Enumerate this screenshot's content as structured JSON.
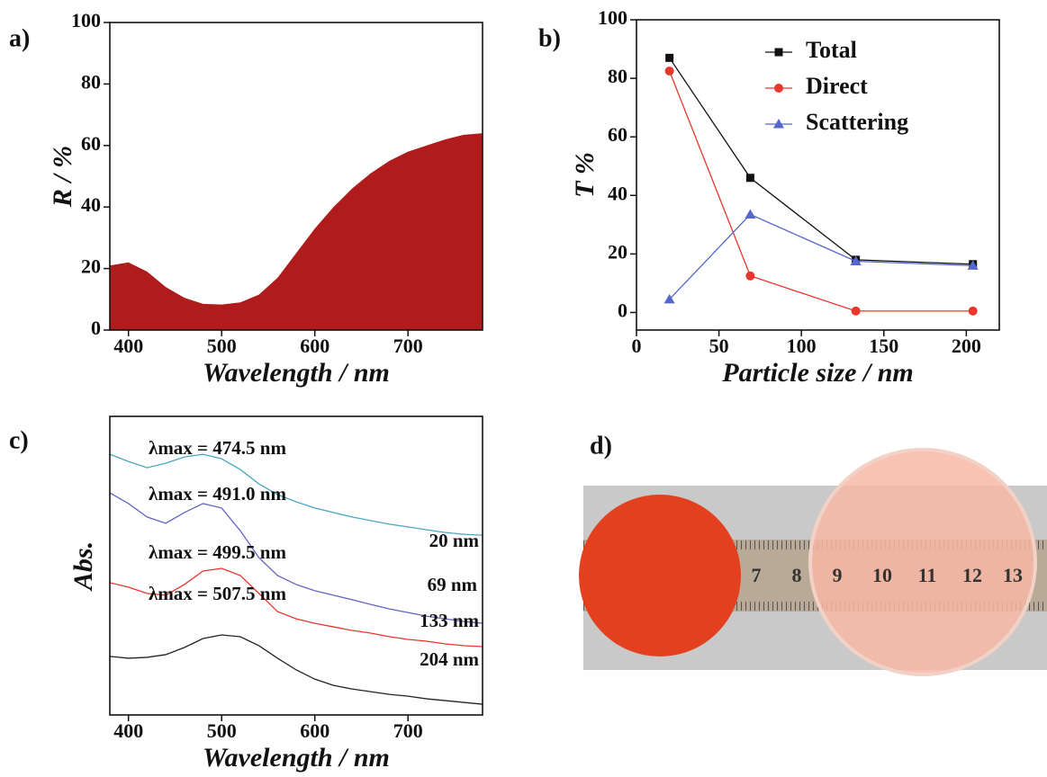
{
  "chart_data": [
    {
      "type": "area",
      "panel_label": "a)",
      "ylabel": "R / %",
      "xlabel": "Wavelength / nm",
      "x": [
        380,
        400,
        420,
        440,
        460,
        480,
        500,
        520,
        540,
        560,
        580,
        600,
        620,
        640,
        660,
        680,
        700,
        720,
        740,
        760,
        780
      ],
      "values": [
        21,
        22,
        19,
        14,
        10.5,
        8.5,
        8.3,
        9,
        11.5,
        17,
        25,
        33,
        40,
        46,
        51,
        55,
        58,
        60,
        62,
        63.5,
        64
      ],
      "color": "#b01c1c",
      "xlim": [
        380,
        780
      ],
      "xticks": [
        400,
        500,
        600,
        700
      ],
      "ylim": [
        0,
        100
      ],
      "yticks": [
        0,
        20,
        40,
        60,
        80,
        100
      ]
    },
    {
      "type": "line",
      "panel_label": "b)",
      "ylabel": "T %",
      "xlabel": "Particle size / nm",
      "x": [
        20,
        69,
        133,
        204
      ],
      "series": [
        {
          "name": "Total",
          "color": "#111111",
          "marker": "square",
          "values": [
            87,
            46,
            18,
            16.5
          ]
        },
        {
          "name": "Direct",
          "color": "#e8372c",
          "marker": "circle",
          "values": [
            82.5,
            12.5,
            0.5,
            0.5
          ]
        },
        {
          "name": "Scattering",
          "color": "#5566cc",
          "marker": "triangle",
          "values": [
            4.5,
            33.5,
            17.5,
            16
          ]
        }
      ],
      "legend": "top-right",
      "xlim": [
        0,
        220
      ],
      "xticks": [
        0,
        50,
        100,
        150,
        200
      ],
      "ylim": [
        -6,
        100
      ],
      "yticks": [
        0,
        20,
        40,
        60,
        80,
        100
      ]
    },
    {
      "type": "line",
      "panel_label": "c)",
      "ylabel": "Abs.",
      "xlabel": "Wavelength / nm",
      "x": [
        380,
        400,
        420,
        440,
        460,
        480,
        500,
        520,
        540,
        560,
        580,
        600,
        620,
        640,
        660,
        680,
        700,
        720,
        740,
        760,
        780
      ],
      "series": [
        {
          "name": "20 nm",
          "annotation": "λmax = 474.5 nm",
          "color": "#4aa6c0",
          "values": [
            0.873,
            0.849,
            0.828,
            0.843,
            0.864,
            0.873,
            0.858,
            0.822,
            0.774,
            0.738,
            0.714,
            0.693,
            0.678,
            0.663,
            0.651,
            0.639,
            0.63,
            0.62,
            0.611,
            0.605,
            0.602
          ]
        },
        {
          "name": "69 nm",
          "annotation": "λmax = 491.0 nm",
          "color": "#6464c4",
          "values": [
            0.744,
            0.708,
            0.663,
            0.642,
            0.678,
            0.708,
            0.693,
            0.617,
            0.527,
            0.467,
            0.437,
            0.416,
            0.401,
            0.386,
            0.37,
            0.355,
            0.343,
            0.331,
            0.322,
            0.313,
            0.307
          ]
        },
        {
          "name": "133 nm",
          "annotation": "λmax = 499.5 nm",
          "color": "#e8372c",
          "values": [
            0.443,
            0.428,
            0.407,
            0.401,
            0.437,
            0.482,
            0.491,
            0.467,
            0.407,
            0.346,
            0.322,
            0.307,
            0.295,
            0.283,
            0.274,
            0.262,
            0.253,
            0.247,
            0.238,
            0.232,
            0.229
          ]
        },
        {
          "name": "204 nm",
          "annotation": "λmax = 507.5 nm",
          "color": "#222222",
          "values": [
            0.196,
            0.19,
            0.193,
            0.202,
            0.226,
            0.256,
            0.268,
            0.262,
            0.232,
            0.19,
            0.151,
            0.12,
            0.099,
            0.087,
            0.078,
            0.069,
            0.063,
            0.054,
            0.048,
            0.042,
            0.036
          ]
        }
      ],
      "xlim": [
        380,
        780
      ],
      "xticks": [
        400,
        500,
        600,
        700
      ],
      "ylim": [
        0,
        1
      ]
    }
  ],
  "photo": {
    "panel_label": "d)",
    "ruler_labels": [
      "7",
      "8",
      "9",
      "10",
      "11",
      "12",
      "13"
    ]
  }
}
